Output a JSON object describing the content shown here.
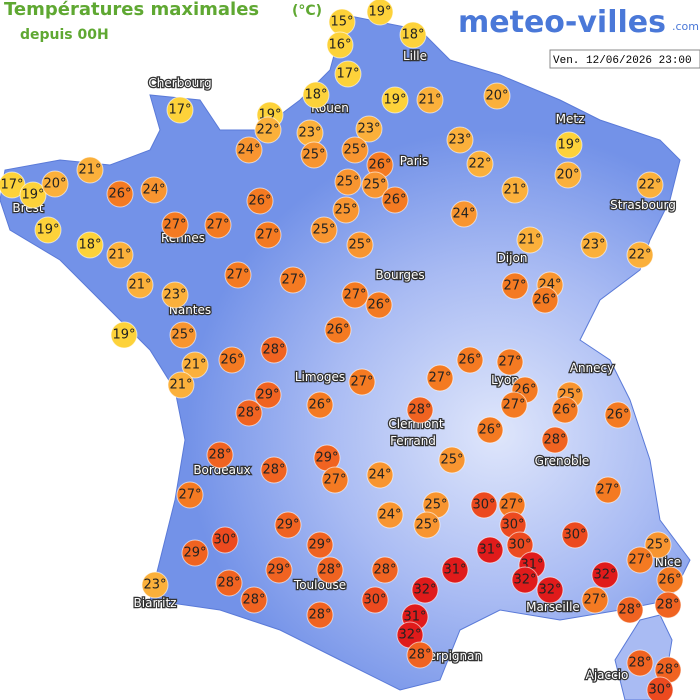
{
  "header": {
    "title": "Températures maximales",
    "unit": "(°C)",
    "subtitle": "depuis 00H",
    "logo": "meteo-villes",
    "logo_suffix": ".com",
    "timestamp": "Ven. 12/06/2026 23:00"
  },
  "cities": [
    "Cherbourg",
    "Lille",
    "Rouen",
    "Paris",
    "Metz",
    "Strasbourg",
    "Brest",
    "Rennes",
    "Dijon",
    "Nantes",
    "Bourges",
    "Annecy",
    "Limoges",
    "Lyon",
    "Clermont",
    "Ferrand",
    "Grenoble",
    "Bordeaux",
    "Nice",
    "Toulouse",
    "Marseille",
    "Biarritz",
    "Perpignan",
    "Ajaccio"
  ],
  "markers": [
    "15°",
    "19°",
    "16°",
    "18°",
    "17°",
    "17°",
    "18°",
    "19°",
    "21°",
    "20°",
    "19°",
    "22°",
    "23°",
    "23°",
    "24°",
    "25°",
    "25°",
    "23°",
    "19°",
    "26°",
    "22°",
    "20°",
    "21°",
    "17°",
    "19°",
    "20°",
    "26°",
    "24°",
    "25°",
    "25°",
    "26°",
    "21°",
    "22°",
    "26°",
    "25°",
    "24°",
    "19°",
    "27°",
    "27°",
    "27°",
    "25°",
    "21°",
    "23°",
    "18°",
    "21°",
    "25°",
    "22°",
    "21°",
    "23°",
    "27°",
    "27°",
    "27°",
    "26°",
    "27°",
    "24°",
    "26°",
    "19°",
    "25°",
    "26°",
    "26°",
    "28°",
    "26°",
    "27°",
    "21°",
    "21°",
    "27°",
    "27°",
    "26°",
    "25°",
    "29°",
    "26°",
    "27°",
    "26°",
    "26°",
    "28°",
    "28°",
    "26°",
    "28°",
    "28°",
    "29°",
    "25°",
    "28°",
    "24°",
    "27°",
    "27°",
    "27°",
    "25°",
    "30°",
    "27°",
    "24°",
    "25°",
    "29°",
    "30°",
    "30°",
    "29°",
    "30°",
    "30°",
    "25°",
    "29°",
    "31°",
    "27°",
    "28°",
    "29°",
    "28°",
    "31°",
    "31°",
    "32°",
    "26°",
    "23°",
    "28°",
    "32°",
    "32°",
    "32°",
    "30°",
    "27°",
    "28°",
    "28°",
    "28°",
    "28°",
    "31°",
    "32°",
    "28°",
    "28°",
    "28°",
    "30°"
  ]
}
